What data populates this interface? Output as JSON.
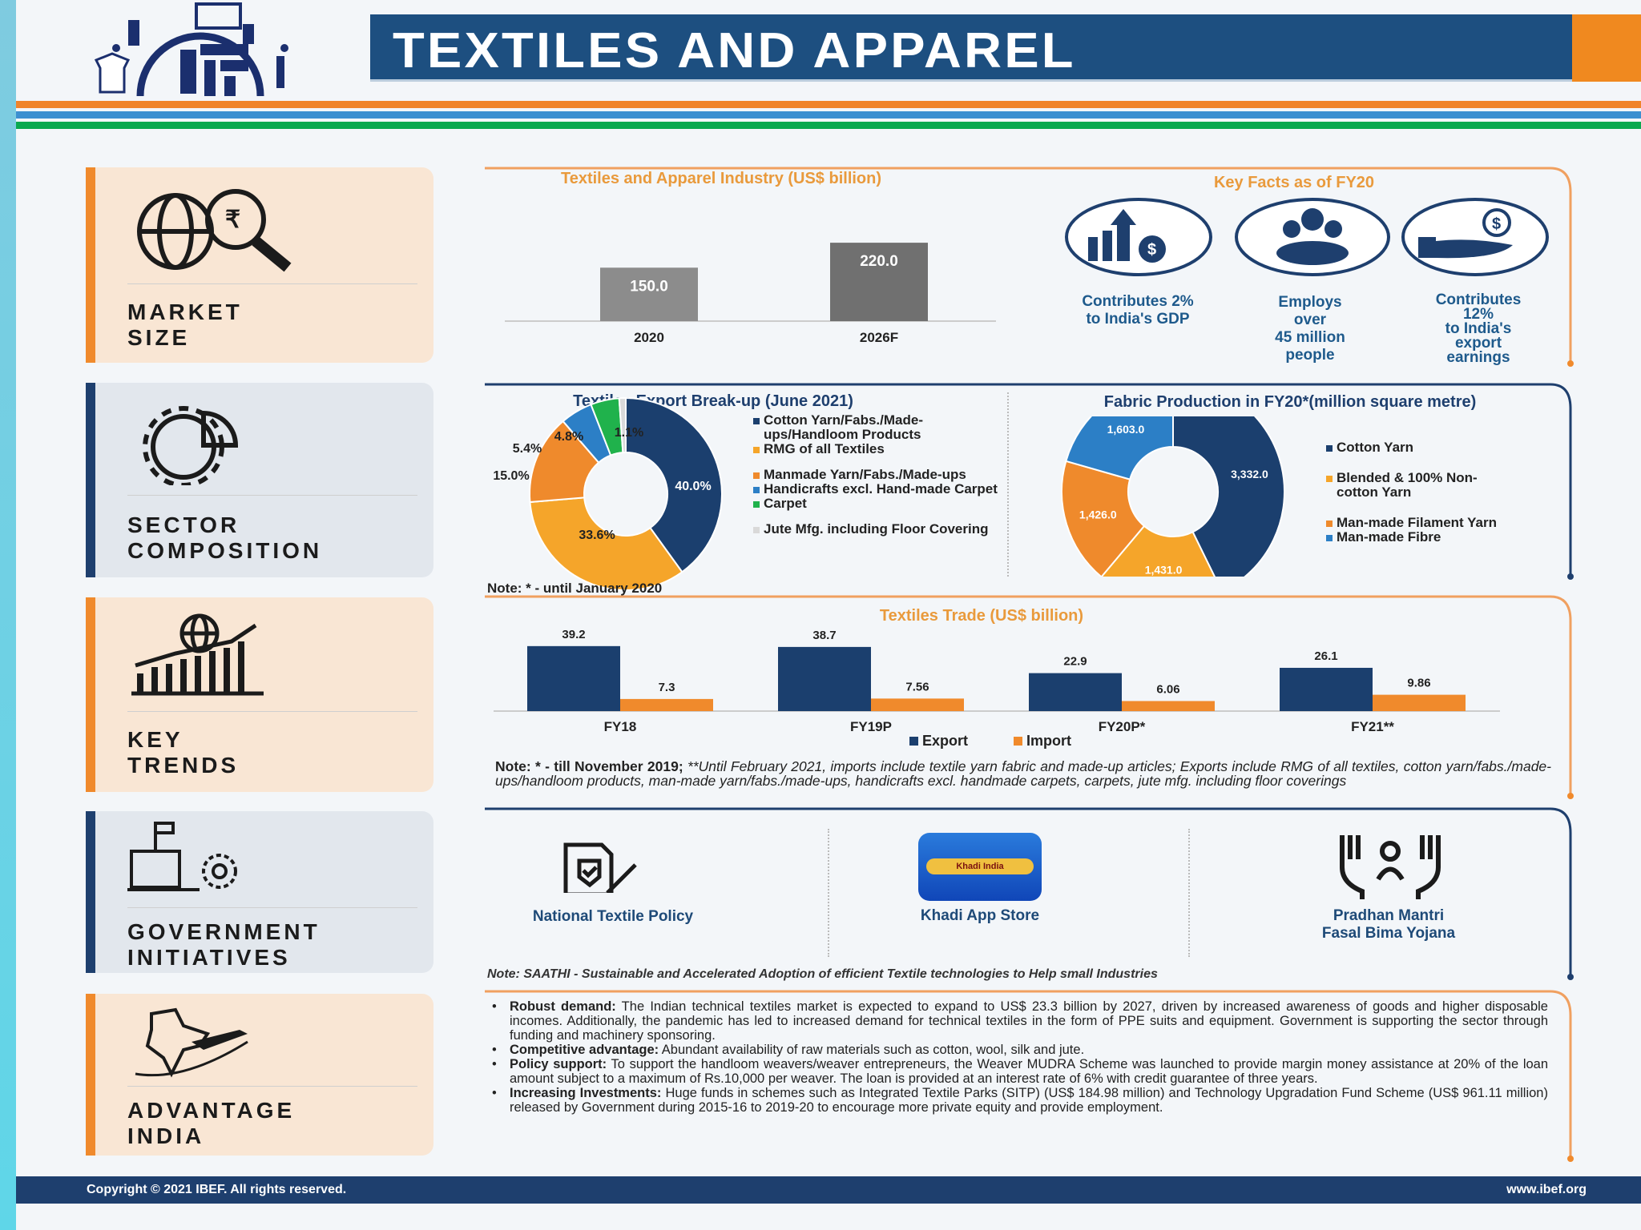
{
  "header": {
    "title": "TEXTILES AND APPAREL",
    "colors": {
      "navy": "#1d4f80",
      "orange": "#f0891f",
      "blue": "#3c8fd0",
      "green": "#0aa84f"
    }
  },
  "sidebar": {
    "items": [
      {
        "label_1": "MARKET",
        "label_2": "SIZE",
        "icon": "globe-rupee-magnifier-icon"
      },
      {
        "label_1": "SECTOR",
        "label_2": "COMPOSITION",
        "icon": "gear-pie-chart-icon"
      },
      {
        "label_1": "KEY",
        "label_2": "TRENDS",
        "icon": "globe-bar-chart-icon"
      },
      {
        "label_1": "GOVERNMENT",
        "label_2": "INITIATIVES",
        "icon": "government-building-icon"
      },
      {
        "label_1": "ADVANTAGE",
        "label_2": "INDIA",
        "icon": "india-map-airplane-icon"
      }
    ]
  },
  "key_facts": {
    "title": "Key Facts as of FY20",
    "items": [
      {
        "lines": [
          "Contributes 2%",
          "to India's GDP"
        ],
        "icon": "growth-dollar-icon"
      },
      {
        "lines": [
          "Employs",
          "over",
          "45 million",
          "people"
        ],
        "icon": "people-icon"
      },
      {
        "lines": [
          "Contributes",
          "12%",
          "to India's",
          "export",
          "earnings"
        ],
        "icon": "hand-dollar-icon"
      }
    ]
  },
  "notes": {
    "fabric": "Note: * - until January 2020",
    "trade_bold": "Note: * - till November 2019; ",
    "trade_italic": "**Until February 2021, imports include textile yarn fabric and made-up articles; Exports include RMG of all textiles, cotton yarn/fabs./made-ups/handloom products, man-made yarn/fabs./made-ups, handicrafts excl. handmade carpets, carpets, jute mfg. including floor coverings",
    "saathi": "Note: SAATHI - Sustainable and Accelerated Adoption of efficient Textile technologies to Help small Industries"
  },
  "initiatives": [
    {
      "lines": [
        "National Textile Policy"
      ],
      "icon": "policy-document-icon"
    },
    {
      "lines": [
        "Khadi App Store"
      ],
      "icon": "khadi-app-icon",
      "logo_text": "Khadi India"
    },
    {
      "lines": [
        "Pradhan Mantri",
        "Fasal Bima Yojana"
      ],
      "icon": "raised-hands-person-icon"
    }
  ],
  "advantages": [
    {
      "title": "Robust demand:",
      "text": " The Indian technical textiles market is expected to expand to US$ 23.3 billion by 2027, driven by increased awareness of goods and higher disposable incomes. Additionally, the pandemic has led to increased demand for technical textiles in the form of PPE suits and equipment. Government is supporting the sector through funding and machinery sponsoring."
    },
    {
      "title": "Competitive advantage:",
      "text": " Abundant availability of raw materials such as cotton, wool, silk and jute."
    },
    {
      "title": "Policy support:",
      "text": " To support the handloom weavers/weaver entrepreneurs, the Weaver MUDRA Scheme was launched to provide margin money assistance at 20% of the loan amount subject to a maximum of Rs.10,000 per weaver. The loan is provided at an interest rate of 6% with credit guarantee of three years."
    },
    {
      "title": "Increasing Investments:",
      "text": " Huge funds in schemes such as Integrated Textile Parks (SITP) (US$ 184.98 million) and Technology Upgradation Fund Scheme (US$ 961.11 million) released by Government during 2015-16 to 2019-20 to encourage more private equity and provide employment."
    }
  ],
  "footer": {
    "copyright": "Copyright © 2021 IBEF. All rights reserved.",
    "url": "www.ibef.org"
  },
  "chart_data": [
    {
      "type": "bar",
      "title": "Textiles and Apparel Industry (US$ billion)",
      "categories": [
        "2020",
        "2026F"
      ],
      "values": [
        150.0,
        220.0
      ],
      "data_labels": [
        "150.0",
        "220.0"
      ],
      "colors": [
        "#8c8c8c",
        "#707070"
      ],
      "grid": false
    },
    {
      "type": "pie",
      "title": "Textiles Export Break-up (June 2021)",
      "donut": true,
      "categories": [
        "Cotton Yarn/Fabs./Made-ups/Handloom Products",
        "RMG of all Textiles",
        "Manmade Yarn/Fabs./Made-ups",
        "Handicrafts excl. Hand-made Carpet",
        "Carpet",
        "Jute Mfg. including Floor Covering"
      ],
      "values": [
        40.0,
        33.6,
        15.0,
        5.4,
        4.8,
        1.1
      ],
      "data_labels": [
        "40.0%",
        "33.6%",
        "15.0%",
        "5.4%",
        "4.8%",
        "1.1%"
      ],
      "colors": [
        "#1b3f6e",
        "#f5a52a",
        "#ef8a2c",
        "#2c7fc6",
        "#20b24c",
        "#d9d9d9"
      ],
      "legend": "right"
    },
    {
      "type": "pie",
      "title": "Fabric Production in FY20*(million square metre)",
      "donut": true,
      "categories": [
        "Cotton Yarn",
        "Blended & 100% Non-cotton Yarn",
        "Man-made Filament Yarn",
        "Man-made Fibre"
      ],
      "values": [
        3332.0,
        1431.0,
        1426.0,
        1603.0
      ],
      "data_labels": [
        "3,332.0",
        "1,431.0",
        "1,426.0",
        "1,603.0"
      ],
      "colors": [
        "#1b3f6e",
        "#f5a52a",
        "#ef8a2c",
        "#2c7fc6"
      ],
      "legend": "right"
    },
    {
      "type": "bar",
      "title": "Textiles Trade (US$ billion)",
      "categories": [
        "FY18",
        "FY19P",
        "FY20P*",
        "FY21**"
      ],
      "series": [
        {
          "name": "Export",
          "values": [
            39.2,
            38.7,
            22.9,
            26.1
          ],
          "labels": [
            "39.2",
            "38.7",
            "22.9",
            "26.1"
          ],
          "color": "#1b3f6e"
        },
        {
          "name": "Import",
          "values": [
            7.3,
            7.56,
            6.06,
            9.86
          ],
          "labels": [
            "7.3",
            "7.56",
            "6.06",
            "9.86"
          ],
          "color": "#f08a2c"
        }
      ],
      "legend": "bottom",
      "grid": false
    }
  ]
}
